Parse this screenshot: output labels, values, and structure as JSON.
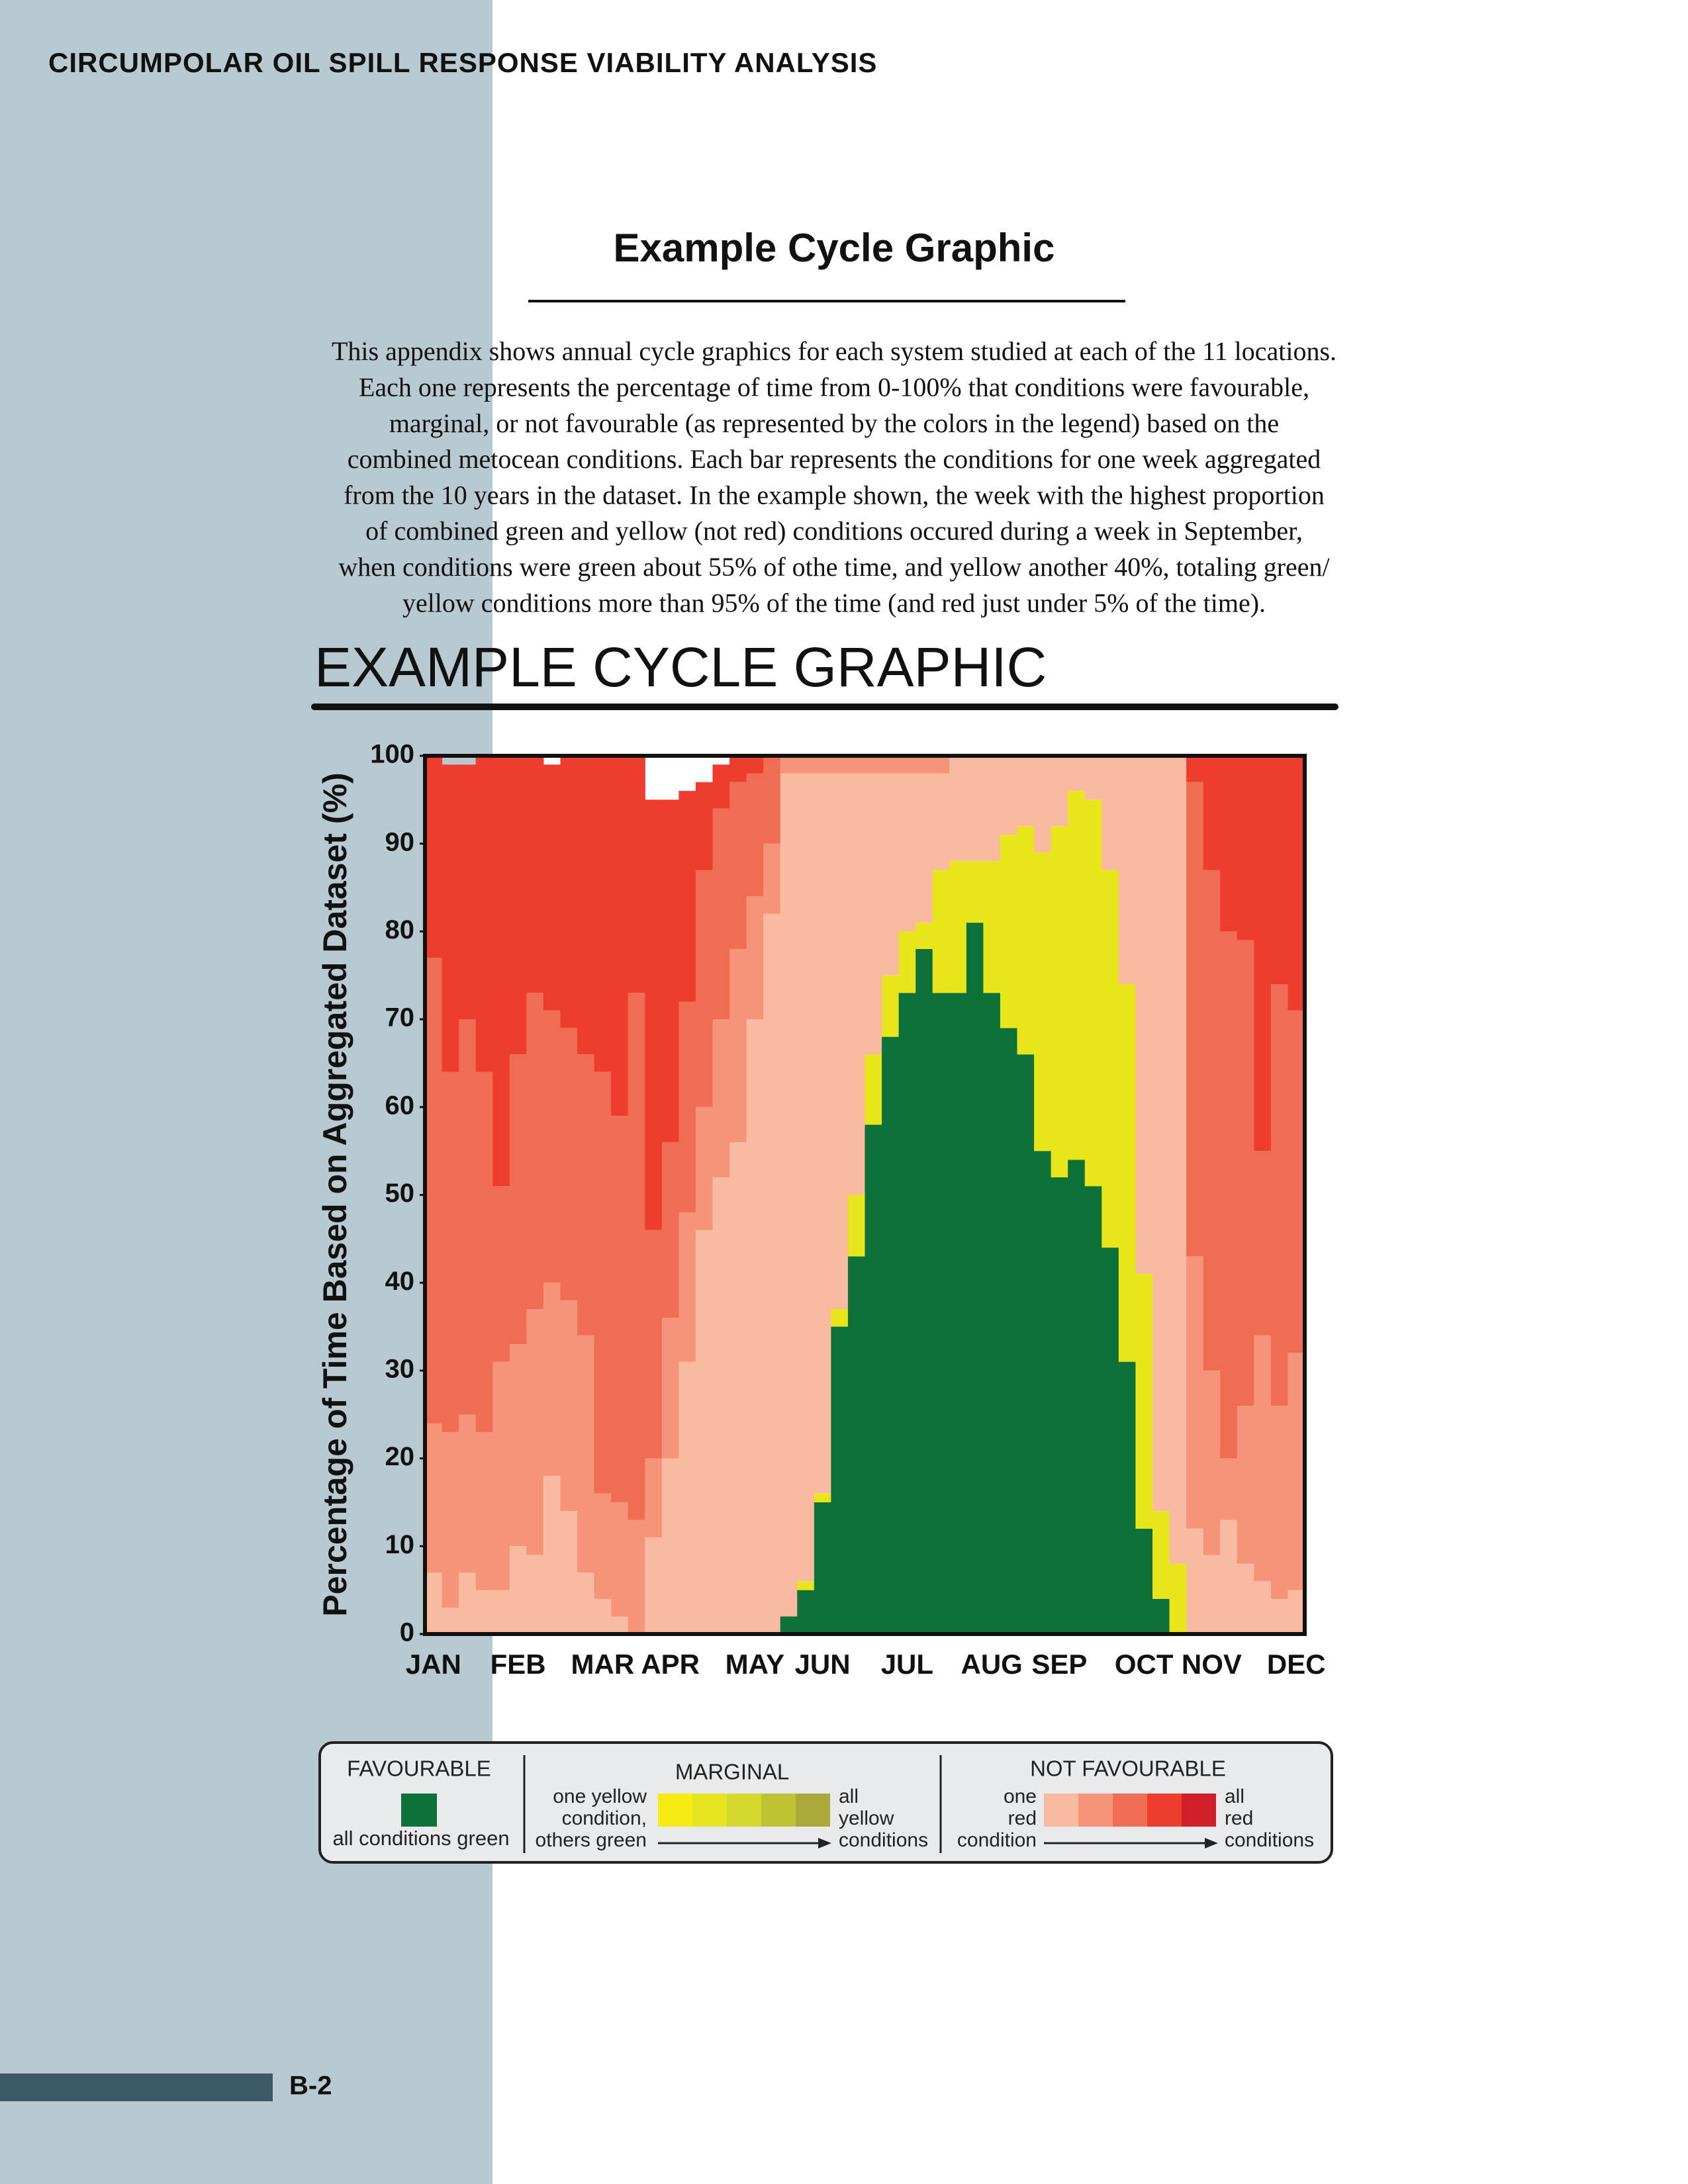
{
  "header": "CIRCUMPOLAR OIL SPILL RESPONSE VIABILITY ANALYSIS",
  "section_title": "Example Cycle Graphic",
  "intro": {
    "lines": [
      "This appendix shows annual cycle graphics for each system studied at each of the 11 locations.",
      "Each one represents the percentage of time from 0-100% that conditions were favourable,",
      "marginal, or not favourable (as represented by the colors in the legend) based on the",
      "combined metocean conditions. Each bar represents the conditions for  one week aggregated",
      "from the 10 years in the dataset. In the example shown, the week with the highest proportion",
      "of combined green and yellow (not red) conditions occured during a week in September,",
      "when conditions were green about 55% of othe time, and yellow another 40%, totaling green/",
      "yellow conditions more than 95% of the time (and red just under 5% of the time)."
    ]
  },
  "chart_data": {
    "type": "stacked_bar",
    "title": "EXAMPLE CYCLE GRAPHIC",
    "ylabel": "Percentage of Time Based on Aggregated Dataset (%)",
    "categories": [
      "JAN",
      null,
      null,
      null,
      null,
      "FEB",
      null,
      null,
      null,
      null,
      "MAR",
      null,
      null,
      null,
      "APR",
      null,
      null,
      null,
      null,
      "MAY",
      null,
      null,
      null,
      "JUN",
      null,
      null,
      null,
      null,
      "JUL",
      null,
      null,
      null,
      null,
      "AUG",
      null,
      null,
      null,
      "SEP",
      null,
      null,
      null,
      null,
      "OCT",
      null,
      null,
      null,
      "NOV",
      null,
      null,
      null,
      null,
      "DEC"
    ],
    "series": [
      {
        "color": "#0e7139",
        "values": [
          0,
          0,
          0,
          0,
          0,
          0,
          0,
          0,
          0,
          0,
          0,
          0,
          0,
          0,
          0,
          0,
          0,
          0,
          0,
          0,
          0,
          2,
          5,
          15,
          35,
          43,
          58,
          68,
          73,
          78,
          73,
          73,
          81,
          73,
          69,
          66,
          55,
          52,
          54,
          51,
          44,
          31,
          12,
          4,
          0,
          0,
          0,
          0,
          0,
          0,
          0,
          0
        ]
      },
      {
        "color": "#e8e61a",
        "values": [
          0,
          0,
          0,
          0,
          0,
          0,
          0,
          0,
          0,
          0,
          0,
          0,
          0,
          0,
          0,
          0,
          0,
          0,
          0,
          0,
          0,
          0,
          1,
          1,
          2,
          7,
          8,
          7,
          7,
          3,
          14,
          15,
          7,
          15,
          22,
          26,
          34,
          40,
          42,
          44,
          43,
          43,
          29,
          10,
          8,
          0,
          0,
          0,
          0,
          0,
          0,
          0
        ]
      },
      {
        "color": "#f9bba0",
        "values": [
          7,
          3,
          7,
          5,
          5,
          10,
          9,
          18,
          14,
          7,
          4,
          2,
          0,
          11,
          20,
          31,
          46,
          52,
          56,
          70,
          82,
          96,
          92,
          82,
          61,
          48,
          32,
          23,
          18,
          17,
          11,
          12,
          12,
          12,
          9,
          8,
          11,
          8,
          4,
          5,
          13,
          26,
          59,
          86,
          92,
          12,
          9,
          13,
          8,
          6,
          4,
          5
        ]
      },
      {
        "color": "#f59478",
        "values": [
          17,
          20,
          18,
          18,
          26,
          23,
          28,
          22,
          24,
          27,
          12,
          13,
          13,
          9,
          16,
          17,
          14,
          18,
          22,
          14,
          8,
          2,
          2,
          2,
          2,
          2,
          2,
          2,
          2,
          2,
          2,
          0,
          0,
          0,
          0,
          0,
          0,
          0,
          0,
          0,
          0,
          0,
          0,
          0,
          0,
          31,
          21,
          7,
          18,
          28,
          22,
          27
        ]
      },
      {
        "color": "#f06c52",
        "values": [
          53,
          41,
          45,
          41,
          20,
          33,
          36,
          31,
          31,
          32,
          48,
          44,
          60,
          26,
          20,
          24,
          27,
          24,
          19,
          14,
          10,
          0,
          0,
          0,
          0,
          0,
          0,
          0,
          0,
          0,
          0,
          0,
          0,
          0,
          0,
          0,
          0,
          0,
          0,
          0,
          0,
          0,
          0,
          0,
          0,
          54,
          57,
          60,
          53,
          21,
          48,
          39
        ]
      },
      {
        "color": "#ee3d2f",
        "values": [
          23,
          35,
          29,
          36,
          49,
          34,
          27,
          28,
          31,
          34,
          36,
          41,
          27,
          49,
          39,
          24,
          10,
          5,
          3,
          2,
          0,
          0,
          0,
          0,
          0,
          0,
          0,
          0,
          0,
          0,
          0,
          0,
          0,
          0,
          0,
          0,
          0,
          0,
          0,
          0,
          0,
          0,
          0,
          0,
          0,
          3,
          13,
          20,
          21,
          45,
          26,
          29
        ]
      }
    ],
    "ylim": [
      0,
      100
    ],
    "yticks": [
      0,
      10,
      20,
      30,
      40,
      50,
      60,
      70,
      80,
      90,
      100
    ]
  },
  "legend": {
    "favourable": {
      "title": "FAVOURABLE",
      "caption": "all conditions green"
    },
    "marginal": {
      "title": "MARGINAL",
      "start": [
        "one yellow",
        "condition,",
        "others green"
      ],
      "end": [
        "all",
        "yellow",
        "conditions"
      ]
    },
    "not_favourable": {
      "title": "NOT FAVOURABLE",
      "start": [
        "one",
        "red",
        "condition"
      ],
      "end": [
        "all",
        "red",
        "conditions"
      ]
    }
  },
  "footer": {
    "page": "B-2"
  }
}
